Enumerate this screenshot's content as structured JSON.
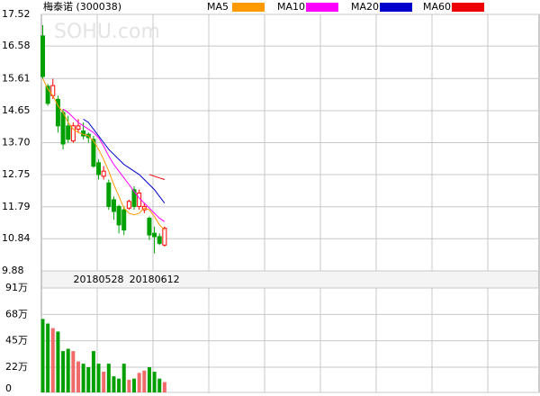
{
  "chart_data": {
    "type": "candlestick",
    "title": "梅泰诺  (300038)",
    "watermark": "SOHU.com",
    "categories": [
      null,
      null,
      null,
      null,
      null,
      null,
      null,
      null,
      null,
      null,
      null,
      "20180528",
      null,
      null,
      null,
      null,
      null,
      null,
      null,
      null,
      null,
      null,
      "20180612",
      null,
      null
    ],
    "open": [
      16.88,
      15.38,
      15.1,
      14.99,
      14.6,
      14.2,
      13.75,
      14.1,
      14.05,
      13.95,
      13.8,
      13.1,
      12.7,
      12.5,
      12.0,
      11.8,
      11.7,
      11.75,
      12.3,
      11.8,
      11.7,
      11.45,
      11.0,
      10.9,
      10.65
    ],
    "close": [
      15.67,
      14.87,
      15.4,
      14.2,
      13.66,
      13.8,
      14.2,
      14.2,
      13.9,
      13.85,
      13.0,
      12.75,
      12.85,
      11.8,
      11.65,
      11.25,
      11.1,
      11.95,
      11.8,
      12.2,
      11.8,
      10.95,
      10.9,
      10.7,
      11.15
    ],
    "high": [
      17.2,
      15.45,
      15.6,
      15.1,
      14.7,
      14.5,
      14.3,
      14.4,
      14.3,
      14.0,
      13.9,
      13.2,
      13.0,
      12.6,
      12.1,
      11.85,
      11.8,
      12.0,
      12.4,
      12.3,
      11.9,
      11.5,
      11.2,
      11.0,
      11.2
    ],
    "low": [
      15.6,
      14.8,
      15.0,
      14.0,
      13.5,
      13.7,
      13.7,
      14.0,
      13.8,
      13.7,
      12.95,
      12.6,
      12.6,
      11.7,
      11.4,
      11.0,
      10.95,
      11.7,
      11.7,
      11.7,
      11.6,
      10.8,
      10.4,
      10.65,
      10.6
    ],
    "up_color": "#ff0000",
    "down_color": "#00a000",
    "series": [
      {
        "name": "MA5",
        "color": "#ff9900",
        "values": [
          15.61,
          15.3,
          15.1,
          14.8,
          14.6,
          14.3,
          14.1,
          14.0,
          13.95,
          13.9,
          13.75,
          13.5,
          13.2,
          12.85,
          12.45,
          12.1,
          11.75,
          11.6,
          11.55,
          11.6,
          11.75,
          11.7,
          11.5,
          11.25,
          11.1
        ]
      },
      {
        "name": "MA10",
        "color": "#ff00ff",
        "values": [
          null,
          null,
          null,
          null,
          14.7,
          14.6,
          14.45,
          14.3,
          14.2,
          14.1,
          14.0,
          13.85,
          13.6,
          13.3,
          13.05,
          12.85,
          12.65,
          12.45,
          12.25,
          12.05,
          11.9,
          11.75,
          11.6,
          11.45,
          11.35
        ]
      },
      {
        "name": "MA20",
        "color": "#0000cc",
        "values": [
          null,
          null,
          null,
          null,
          null,
          null,
          null,
          null,
          14.4,
          14.3,
          14.1,
          13.9,
          13.7,
          13.5,
          13.35,
          13.2,
          13.05,
          12.95,
          12.85,
          12.75,
          12.6,
          12.45,
          12.3,
          12.1,
          11.9
        ]
      },
      {
        "name": "MA60",
        "color": "#ee0000",
        "values": [
          null,
          null,
          null,
          null,
          null,
          null,
          null,
          null,
          null,
          null,
          null,
          null,
          null,
          null,
          null,
          null,
          null,
          null,
          null,
          null,
          null,
          12.75,
          12.7,
          12.65,
          12.6
        ]
      }
    ],
    "ylim": [
      9.88,
      17.52
    ],
    "yticks": [
      17.52,
      16.58,
      15.61,
      14.65,
      {
        "value": 13.7,
        "label": "13.70"
      },
      12.75,
      11.79,
      10.84,
      9.88
    ],
    "volume": [
      64,
      60,
      56,
      53,
      36,
      38,
      36,
      27,
      25,
      22,
      36,
      25,
      18,
      25,
      14,
      12,
      25,
      11,
      12,
      17,
      19,
      22,
      18,
      12,
      9
    ],
    "up_volume_color": "#f06a6a",
    "vlim": [
      0,
      91
    ],
    "vticks": [
      {
        "value": 91,
        "label": "91万"
      },
      {
        "value": 68,
        "label": "68万"
      },
      {
        "value": 45,
        "label": "45万"
      },
      {
        "value": 22,
        "label": "22万"
      },
      0
    ],
    "grid": true
  }
}
